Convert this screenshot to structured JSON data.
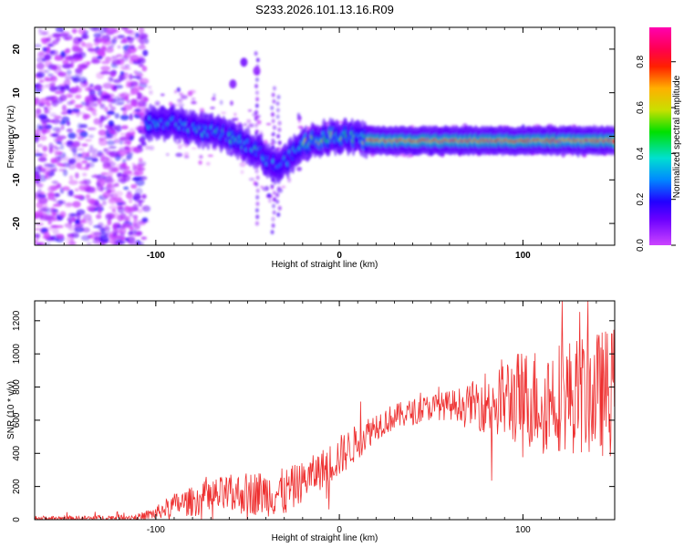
{
  "figure": {
    "title": "S233.2026.101.13.16.R09"
  },
  "chart_data": [
    {
      "type": "heatmap",
      "xlabel": "Height of straight line (km)",
      "ylabel": "Frequency (Hz)",
      "xlim": [
        -166,
        150
      ],
      "ylim": [
        -25,
        25
      ],
      "xticks": [
        "-100",
        "0",
        "100"
      ],
      "yticks": [
        "-20",
        "-10",
        "0",
        "10",
        "20"
      ],
      "colorbar": {
        "label": "Normalized spectral amplitude",
        "range": [
          0,
          0.95
        ],
        "ticks": [
          "0.0",
          "0.2",
          "0.4",
          "0.6",
          "0.8"
        ],
        "colors": [
          "#cc44ff",
          "#2200ff",
          "#0088ff",
          "#00e0d0",
          "#00e000",
          "#c8e000",
          "#ffb000",
          "#ff2000",
          "#ff0050",
          "#ff00b0"
        ]
      },
      "ridge": {
        "description_points_x": [
          -100,
          -90,
          -80,
          -70,
          -60,
          -50,
          -42,
          -35,
          -30,
          -25,
          -20,
          -15,
          -10,
          -5,
          0,
          10,
          20,
          30,
          40,
          50,
          60,
          70,
          80,
          90,
          100,
          110,
          120,
          130,
          140,
          148
        ],
        "description_points_y": [
          3,
          3,
          2,
          1,
          0,
          -2,
          -4,
          -7,
          -6,
          -4,
          -2,
          -1,
          -0.5,
          0,
          0,
          -0.5,
          -1,
          -1,
          -1,
          -1,
          -1,
          -1,
          -1,
          -1,
          -1,
          -1,
          -1,
          -1,
          -1,
          -1
        ],
        "peak_amplitude": 0.9
      }
    },
    {
      "type": "line",
      "xlabel": "Height of straight line (km)",
      "ylabel": "SNR (10 * v/v)",
      "xlim": [
        -166,
        150
      ],
      "ylim": [
        0,
        1320
      ],
      "xticks": [
        "-100",
        "0",
        "100"
      ],
      "yticks": [
        "0",
        "200",
        "400",
        "600",
        "800",
        "1000",
        "1200"
      ],
      "series": [
        {
          "name": "SNR",
          "color": "#ee3030",
          "envelope_x": [
            -166,
            -140,
            -110,
            -100,
            -90,
            -80,
            -70,
            -60,
            -50,
            -40,
            -30,
            -20,
            -10,
            0,
            10,
            20,
            30,
            40,
            50,
            60,
            70,
            80,
            90,
            100,
            110,
            120,
            130,
            140,
            150
          ],
          "envelope_mean": [
            8,
            8,
            15,
            40,
            90,
            110,
            140,
            150,
            160,
            160,
            160,
            230,
            300,
            380,
            470,
            570,
            620,
            650,
            680,
            690,
            700,
            710,
            730,
            730,
            730,
            750,
            750,
            760,
            770
          ],
          "envelope_noise": [
            15,
            15,
            20,
            40,
            70,
            90,
            110,
            120,
            130,
            140,
            150,
            120,
            120,
            130,
            110,
            90,
            80,
            80,
            80,
            90,
            110,
            200,
            260,
            300,
            320,
            340,
            360,
            380,
            400
          ]
        }
      ]
    }
  ]
}
